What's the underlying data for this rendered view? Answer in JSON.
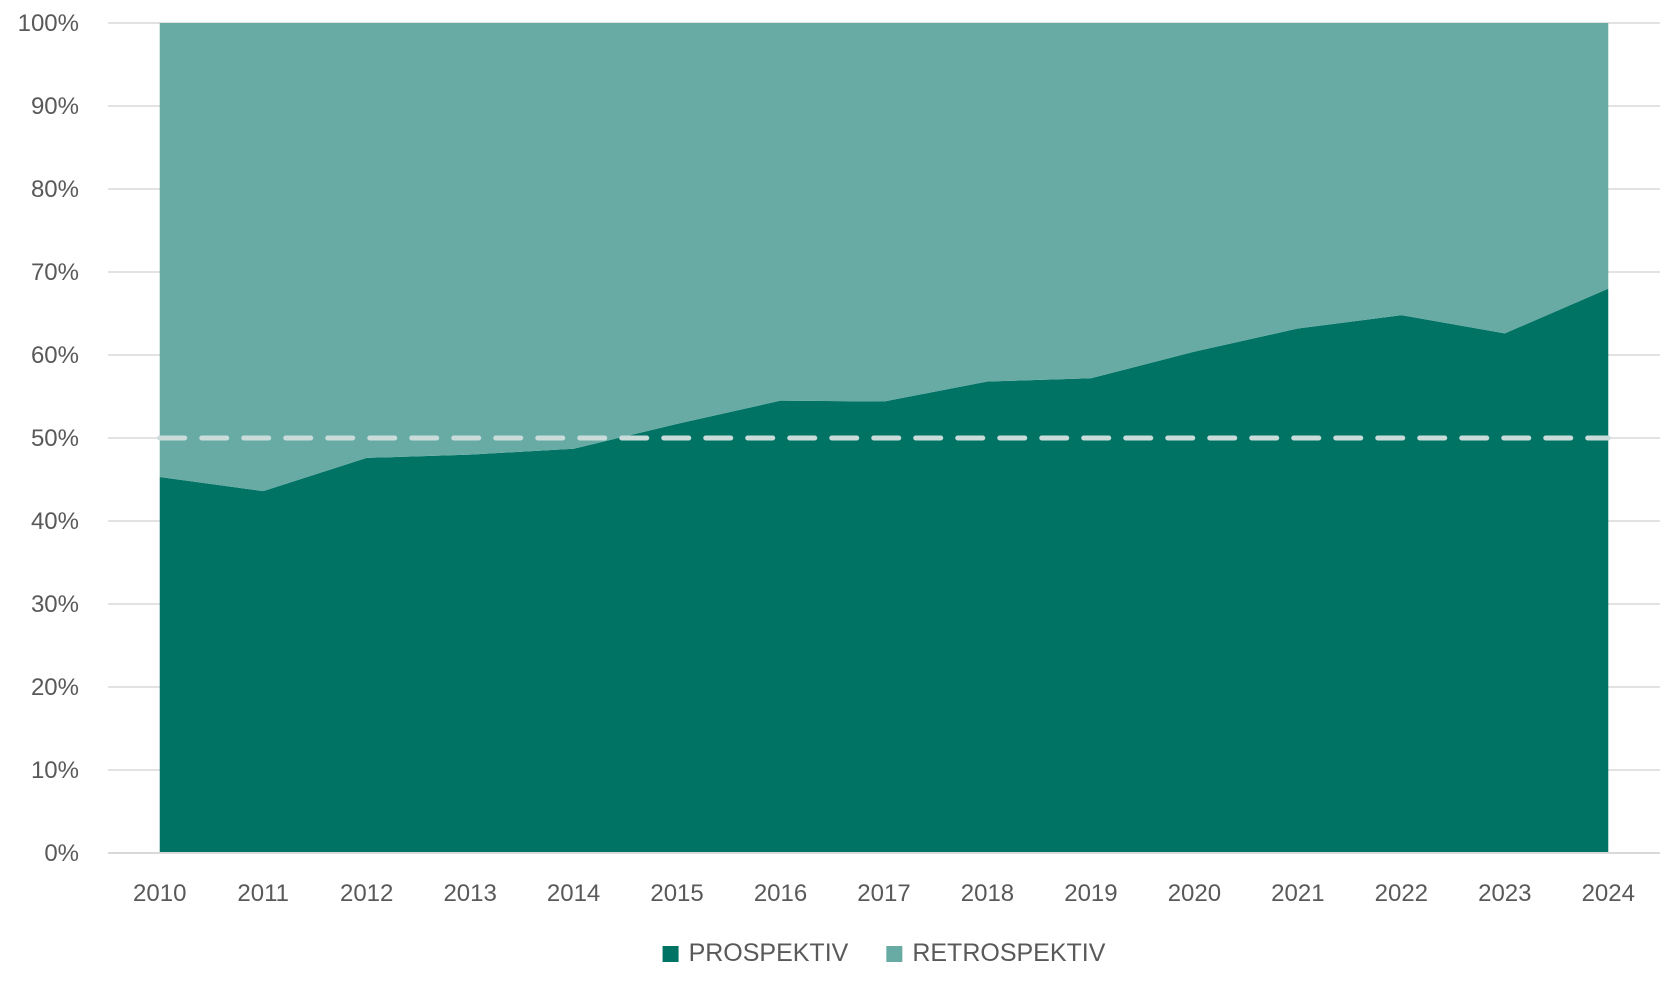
{
  "chart_data": {
    "type": "area",
    "stacked_percent": true,
    "x": [
      "2010",
      "2011",
      "2012",
      "2013",
      "2014",
      "2015",
      "2016",
      "2017",
      "2018",
      "2019",
      "2020",
      "2021",
      "2022",
      "2023",
      "2024"
    ],
    "series": [
      {
        "name": "PROSPEKTIV",
        "color": "#007365",
        "values": [
          45.3,
          43.6,
          47.6,
          48.0,
          48.7,
          51.7,
          54.5,
          54.4,
          56.8,
          57.2,
          60.4,
          63.2,
          64.8,
          62.6,
          68.0
        ]
      },
      {
        "name": "RETROSPEKTIV",
        "color": "#67ABA4",
        "values": [
          54.7,
          56.4,
          52.4,
          52.0,
          51.3,
          48.3,
          45.5,
          45.6,
          43.2,
          42.8,
          39.6,
          36.8,
          35.2,
          37.4,
          32.0
        ]
      }
    ],
    "y_ticks": [
      "0%",
      "10%",
      "20%",
      "30%",
      "40%",
      "50%",
      "60%",
      "70%",
      "80%",
      "90%",
      "100%"
    ],
    "ylim": [
      0,
      100
    ],
    "reference_line": {
      "value": 50,
      "style": "dashed",
      "color": "#C9DCDA"
    },
    "grid": true,
    "gridline_color": "#D9D9D9",
    "legend_position": "bottom-center",
    "title": "",
    "xlabel": "",
    "ylabel": ""
  }
}
